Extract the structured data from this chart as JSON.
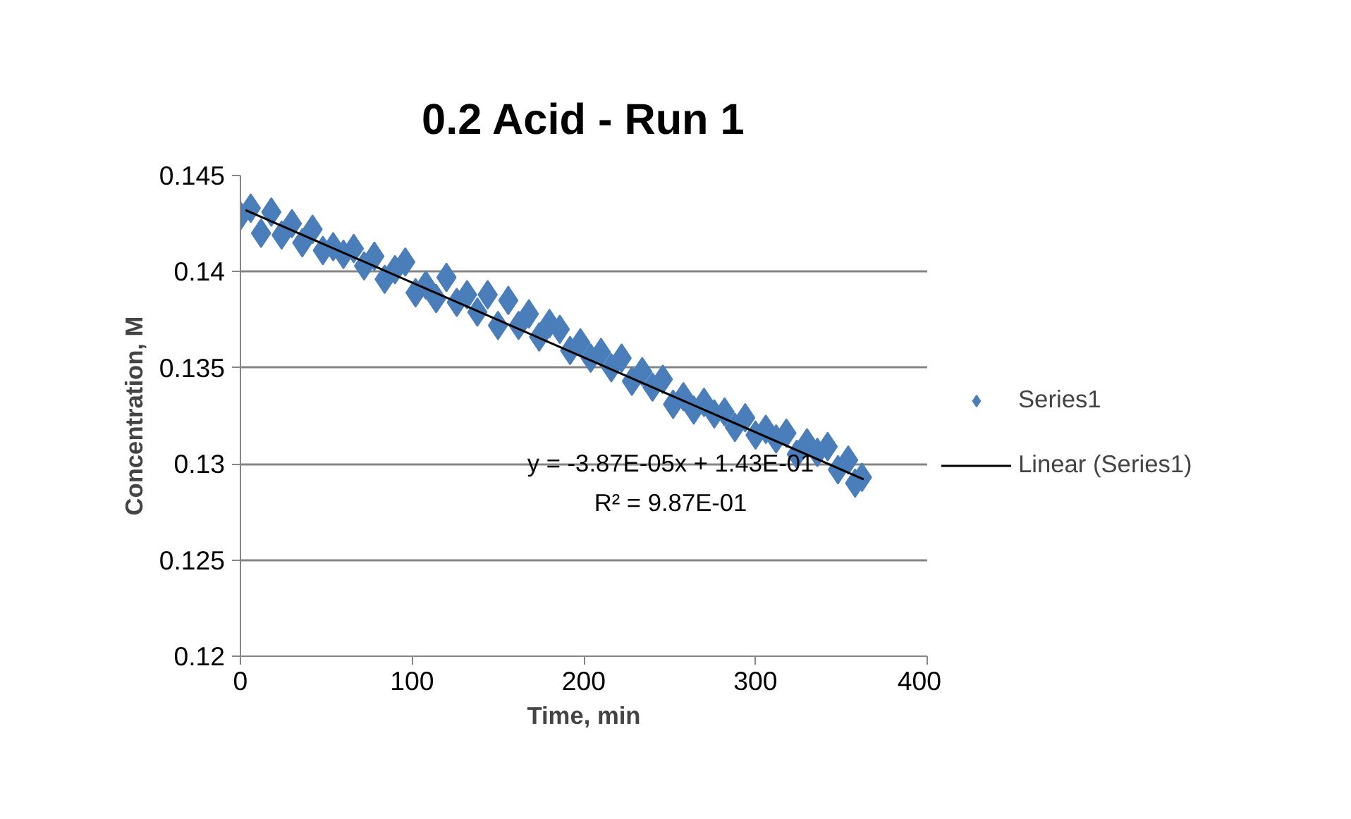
{
  "chart_data": {
    "type": "scatter",
    "title": "0.2 Acid - Run 1",
    "xlabel": "Time, min",
    "ylabel": "Concentration, M",
    "xlim": [
      0,
      400
    ],
    "xticks": [
      0,
      100,
      200,
      300,
      400
    ],
    "ylim": [
      0.12,
      0.145
    ],
    "yticks": [
      0.12,
      0.125,
      0.13,
      0.135,
      0.14,
      0.145
    ],
    "grid": "y",
    "legend": "right",
    "marker": "diamond",
    "annotations": [
      "y = -3.87E-05x + 1.43E-01",
      "R² = 9.87E-01"
    ],
    "series": [
      {
        "name": "Series1",
        "color": "#4a7ebb",
        "x": [
          0,
          6,
          12,
          18,
          24,
          30,
          36,
          42,
          48,
          54,
          60,
          66,
          72,
          78,
          84,
          90,
          96,
          102,
          108,
          114,
          120,
          126,
          132,
          138,
          144,
          150,
          156,
          162,
          168,
          174,
          180,
          186,
          192,
          198,
          204,
          210,
          216,
          222,
          228,
          234,
          240,
          246,
          252,
          258,
          264,
          270,
          276,
          282,
          288,
          294,
          300,
          306,
          312,
          318,
          324,
          330,
          336,
          342,
          348,
          354,
          358,
          362
        ],
        "values": [
          0.1429,
          0.1433,
          0.142,
          0.1431,
          0.1419,
          0.1425,
          0.1415,
          0.1422,
          0.1411,
          0.1413,
          0.1409,
          0.1412,
          0.1403,
          0.1408,
          0.1396,
          0.1401,
          0.1405,
          0.1389,
          0.1393,
          0.1386,
          0.1397,
          0.1384,
          0.1388,
          0.1379,
          0.1388,
          0.1372,
          0.1385,
          0.1372,
          0.1378,
          0.1366,
          0.1373,
          0.137,
          0.1359,
          0.1363,
          0.1355,
          0.1358,
          0.135,
          0.1355,
          0.1343,
          0.1348,
          0.134,
          0.1344,
          0.1331,
          0.1335,
          0.1328,
          0.1332,
          0.1326,
          0.1327,
          0.1319,
          0.1324,
          0.1315,
          0.1318,
          0.1313,
          0.1316,
          0.1305,
          0.1311,
          0.1306,
          0.1309,
          0.1297,
          0.1302,
          0.129,
          0.1293
        ]
      },
      {
        "name": "Linear (Series1)",
        "type": "line",
        "marker": "none",
        "color": "#000000",
        "x": [
          3,
          363
        ],
        "values": [
          0.1432,
          0.1292
        ]
      }
    ]
  }
}
